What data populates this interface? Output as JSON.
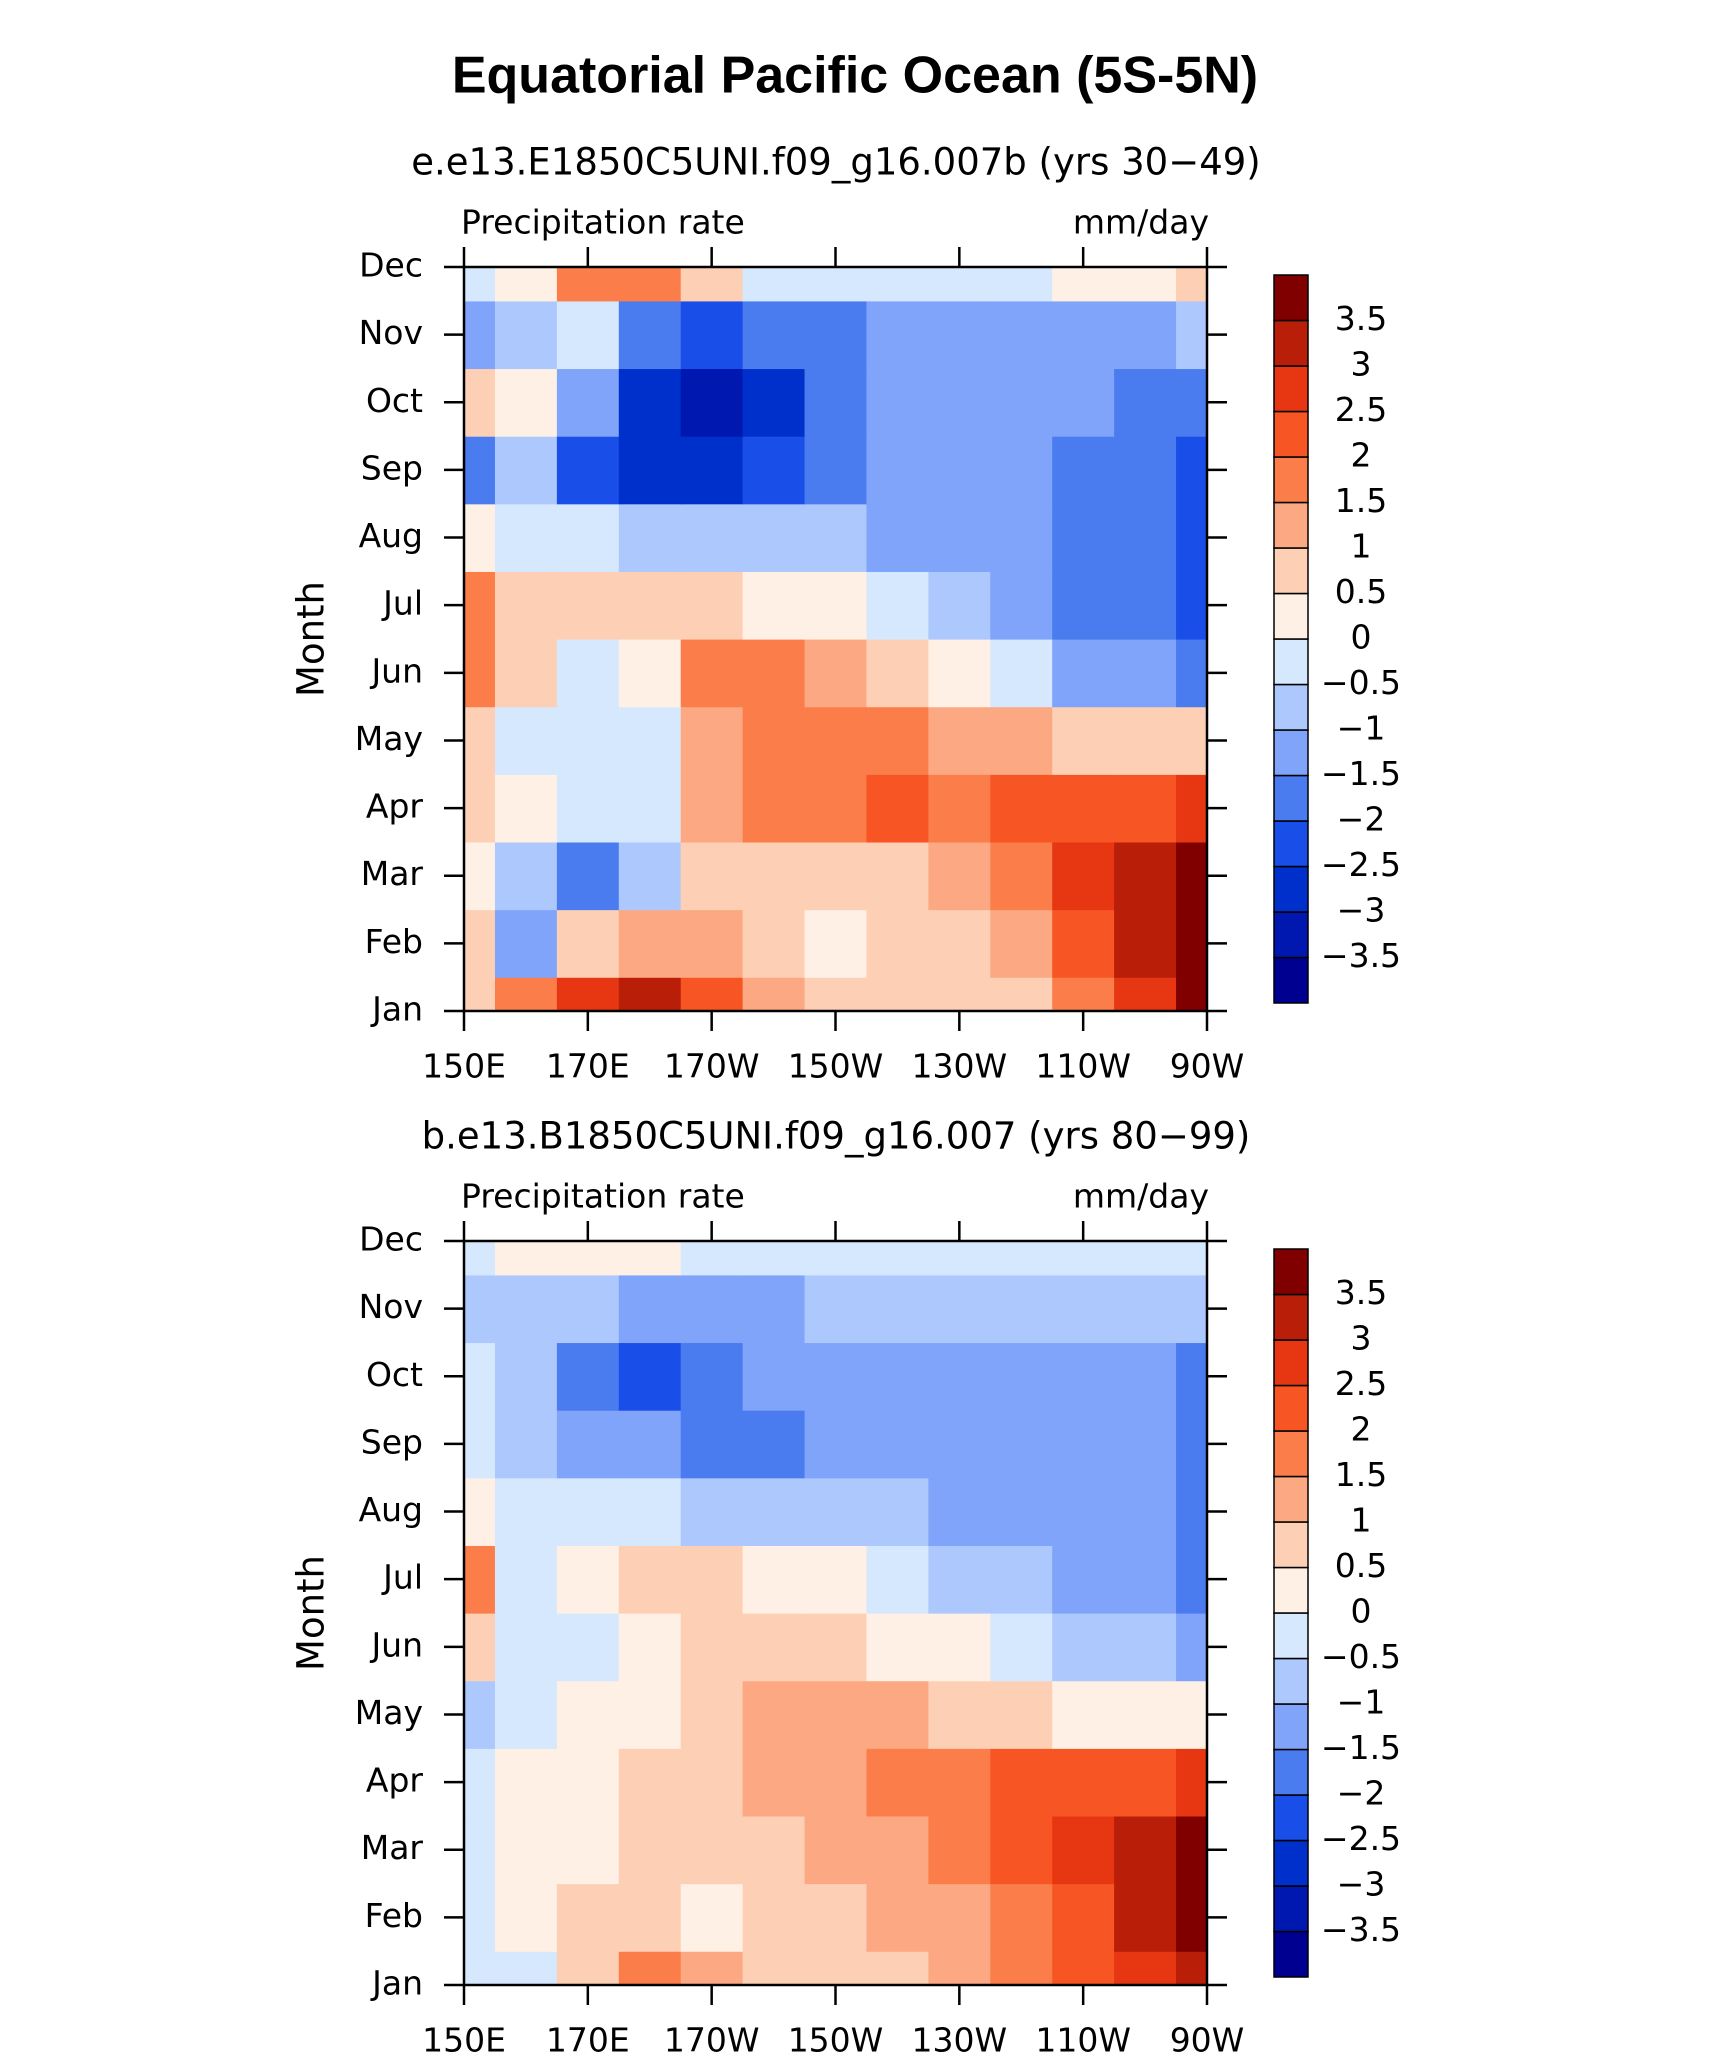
{
  "title": "Equatorial Pacific Ocean (5S-5N)",
  "chart_data": [
    {
      "type": "contour",
      "title": "e.e13.E1850C5UNI.f09_g16.007b (yrs 30−49)",
      "left_label": "Precipitation rate",
      "right_label": "mm/day",
      "y_label": "Month",
      "categories": [
        "Jan",
        "Feb",
        "Mar",
        "Apr",
        "May",
        "Jun",
        "Jul",
        "Aug",
        "Sep",
        "Oct",
        "Nov",
        "Dec"
      ],
      "x": [
        150,
        160,
        170,
        180,
        190,
        200,
        210,
        220,
        230,
        240,
        250,
        260,
        270
      ],
      "xlim": [
        150,
        270
      ],
      "xticks": [
        {
          "value": 150,
          "label": "150E"
        },
        {
          "value": 170,
          "label": "170E"
        },
        {
          "value": 190,
          "label": "170W"
        },
        {
          "value": 210,
          "label": "150W"
        },
        {
          "value": 230,
          "label": "130W"
        },
        {
          "value": 250,
          "label": "110W"
        },
        {
          "value": 270,
          "label": "90W"
        }
      ],
      "z": [
        [
          0.5,
          1.5,
          2.5,
          3,
          2,
          1,
          0.5,
          0.5,
          0.5,
          0.5,
          1.5,
          2.5,
          3.5
        ],
        [
          0.5,
          -1.5,
          0.5,
          1,
          1,
          0.5,
          0.2,
          0.5,
          0.5,
          1,
          2,
          3,
          4
        ],
        [
          0.2,
          -1,
          -2,
          -1,
          0.5,
          0.5,
          0.5,
          0.8,
          1,
          1.5,
          2.5,
          3,
          3.5
        ],
        [
          0.5,
          0.2,
          -0.5,
          -0.3,
          1,
          1.5,
          1.8,
          2,
          1.8,
          2,
          2,
          2.2,
          2.5
        ],
        [
          0.5,
          -0.2,
          -0.3,
          -0.3,
          1,
          1.8,
          1.5,
          1.5,
          1.2,
          1,
          0.8,
          0.6,
          0.5
        ],
        [
          1.5,
          0.5,
          -0.3,
          0.2,
          1.5,
          1.5,
          1,
          0.5,
          0.2,
          -0.5,
          -1.2,
          -1.5,
          -2
        ],
        [
          1.5,
          0.8,
          0.8,
          0.5,
          0.8,
          0.3,
          0,
          -0.3,
          -0.8,
          -1.2,
          -1.8,
          -2,
          -2.2
        ],
        [
          0.2,
          -0.5,
          -0.5,
          -0.7,
          -0.8,
          -1,
          -1,
          -1.2,
          -1.3,
          -1.5,
          -1.8,
          -2,
          -2.3
        ],
        [
          -2,
          -1,
          -2.5,
          -3,
          -3,
          -2.5,
          -1.8,
          -1.5,
          -1.5,
          -1.5,
          -1.8,
          -2,
          -2.3
        ],
        [
          0.5,
          0,
          -1.5,
          -3,
          -3.5,
          -3,
          -2,
          -1.5,
          -1.5,
          -1.5,
          -1.5,
          -2,
          -2
        ],
        [
          -1.5,
          -0.8,
          -0.5,
          -2,
          -2.5,
          -2,
          -1.8,
          -1.5,
          -1.5,
          -1.5,
          -1.3,
          -1.2,
          -1
        ],
        [
          -0.5,
          0,
          1.5,
          1.5,
          0.5,
          -0.2,
          -0.5,
          -0.5,
          -0.5,
          -0.3,
          0.3,
          0.2,
          0.5
        ]
      ],
      "levels": [
        {
          "value": -3.5,
          "label": "−3.5"
        },
        {
          "value": -3,
          "label": "−3"
        },
        {
          "value": -2.5,
          "label": "−2.5"
        },
        {
          "value": -2,
          "label": "−2"
        },
        {
          "value": -1.5,
          "label": "−1.5"
        },
        {
          "value": -1,
          "label": "−1"
        },
        {
          "value": -0.5,
          "label": "−0.5"
        },
        0,
        0.5,
        1,
        1.5,
        2,
        2.5,
        3,
        3.5
      ],
      "colors": [
        "#000090",
        "#0018b0",
        "#0030cc",
        "#1a4ee8",
        "#4a7cf0",
        "#7fa4fa",
        "#adc8fc",
        "#d5e8fd",
        "#fff0e5",
        "#fdd0b5",
        "#fca882",
        "#fb7d4a",
        "#f85525",
        "#e63712",
        "#b81e08",
        "#800000"
      ]
    },
    {
      "type": "contour",
      "title": "b.e13.B1850C5UNI.f09_g16.007 (yrs 80−99)",
      "left_label": "Precipitation rate",
      "right_label": "mm/day",
      "y_label": "Month",
      "categories": [
        "Jan",
        "Feb",
        "Mar",
        "Apr",
        "May",
        "Jun",
        "Jul",
        "Aug",
        "Sep",
        "Oct",
        "Nov",
        "Dec"
      ],
      "x": [
        150,
        160,
        170,
        180,
        190,
        200,
        210,
        220,
        230,
        240,
        250,
        260,
        270
      ],
      "xlim": [
        150,
        270
      ],
      "xticks": [
        {
          "value": 150,
          "label": "150E"
        },
        {
          "value": 170,
          "label": "170E"
        },
        {
          "value": 190,
          "label": "170W"
        },
        {
          "value": 210,
          "label": "150W"
        },
        {
          "value": 230,
          "label": "130W"
        },
        {
          "value": 250,
          "label": "110W"
        },
        {
          "value": 270,
          "label": "90W"
        }
      ],
      "z": [
        [
          -0.3,
          -0.5,
          0.5,
          1.5,
          1,
          0.5,
          0.5,
          0.5,
          1,
          1.5,
          2,
          2.5,
          3
        ],
        [
          -0.3,
          0,
          0.5,
          0.5,
          0.3,
          0.5,
          0.8,
          1,
          1.2,
          1.8,
          2.2,
          3,
          3.8
        ],
        [
          -0.3,
          0.3,
          0.3,
          0.5,
          0.8,
          0.8,
          1,
          1.2,
          1.5,
          2.2,
          2.5,
          3,
          3.5
        ],
        [
          -0.3,
          0.3,
          0.2,
          0.5,
          0.7,
          1,
          1,
          1.5,
          1.6,
          2,
          2,
          2.2,
          2.5
        ],
        [
          -0.8,
          -0.3,
          0.2,
          0.3,
          0.5,
          1,
          1,
          1,
          0.8,
          0.5,
          0.3,
          0.2,
          0
        ],
        [
          0.8,
          -0.5,
          -0.3,
          0.3,
          0.8,
          0.8,
          0.5,
          0.3,
          0,
          -0.3,
          -0.8,
          -1,
          -1.5
        ],
        [
          1.8,
          -0.3,
          0.3,
          0.5,
          0.5,
          0.3,
          0,
          -0.5,
          -1,
          -1,
          -1.2,
          -1.3,
          -1.8
        ],
        [
          0.3,
          -0.3,
          -0.5,
          -0.5,
          -0.7,
          -0.8,
          -1,
          -1,
          -1.2,
          -1.2,
          -1.2,
          -1.3,
          -1.8
        ],
        [
          -0.5,
          -0.7,
          -1.5,
          -1.5,
          -1.8,
          -1.8,
          -1.5,
          -1.2,
          -1.2,
          -1.2,
          -1.3,
          -1.5,
          -1.8
        ],
        [
          -0.5,
          -0.7,
          -2,
          -2.2,
          -1.8,
          -1.5,
          -1.2,
          -1.2,
          -1.2,
          -1.2,
          -1.2,
          -1.5,
          -1.8
        ],
        [
          -0.8,
          -0.8,
          -1,
          -1.3,
          -1.5,
          -1.2,
          -1,
          -1,
          -1,
          -1,
          -1,
          -1,
          -1
        ],
        [
          -0.5,
          0.2,
          0.3,
          0.3,
          -0.2,
          -0.3,
          -0.3,
          -0.3,
          -0.3,
          -0.3,
          -0.3,
          -0.3,
          -0.3
        ]
      ],
      "levels": [
        {
          "value": -3.5,
          "label": "−3.5"
        },
        {
          "value": -3,
          "label": "−3"
        },
        {
          "value": -2.5,
          "label": "−2.5"
        },
        {
          "value": -2,
          "label": "−2"
        },
        {
          "value": -1.5,
          "label": "−1.5"
        },
        {
          "value": -1,
          "label": "−1"
        },
        {
          "value": -0.5,
          "label": "−0.5"
        },
        0,
        0.5,
        1,
        1.5,
        2,
        2.5,
        3,
        3.5
      ],
      "colors": [
        "#000090",
        "#0018b0",
        "#0030cc",
        "#1a4ee8",
        "#4a7cf0",
        "#7fa4fa",
        "#adc8fc",
        "#d5e8fd",
        "#fff0e5",
        "#fdd0b5",
        "#fca882",
        "#fb7d4a",
        "#f85525",
        "#e63712",
        "#b81e08",
        "#800000"
      ]
    }
  ]
}
